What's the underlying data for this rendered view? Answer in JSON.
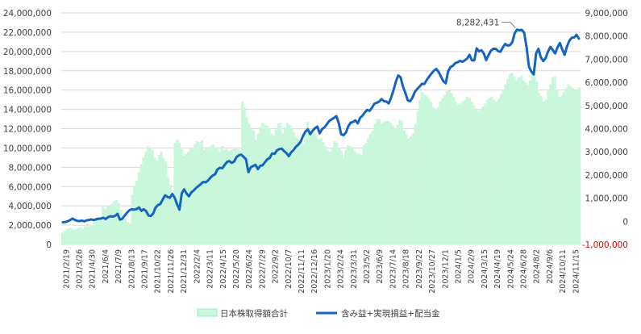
{
  "chart_data": {
    "type": "bar+line",
    "left_axis": {
      "min": 0,
      "max": 24000000,
      "ticks": [
        0,
        2000000,
        4000000,
        6000000,
        8000000,
        10000000,
        12000000,
        14000000,
        16000000,
        18000000,
        20000000,
        22000000,
        24000000
      ],
      "tick_labels": [
        "0",
        "2,000,000",
        "4,000,000",
        "6,000,000",
        "8,000,000",
        "10,000,000",
        "12,000,000",
        "14,000,000",
        "16,000,000",
        "18,000,000",
        "20,000,000",
        "22,000,000",
        "24,000,000"
      ]
    },
    "right_axis": {
      "min": -1000000,
      "max": 9000000,
      "ticks": [
        -1000000,
        0,
        1000000,
        2000000,
        3000000,
        4000000,
        5000000,
        6000000,
        7000000,
        8000000,
        9000000
      ],
      "tick_labels": [
        "-1,000,000",
        "0",
        "1,000,000",
        "2,000,000",
        "3,000,000",
        "4,000,000",
        "5,000,000",
        "6,000,000",
        "7,000,000",
        "8,000,000",
        "9,000,000"
      ],
      "negative_color": "#e00000"
    },
    "x_labels": [
      "2021/2/19",
      "2021/3/26",
      "2021/4/30",
      "2021/6/4",
      "2021/7/9",
      "2021/8/13",
      "2021/9/17",
      "2021/10/22",
      "2021/11/26",
      "2021/12/31",
      "2022/2/4",
      "2022/3/11",
      "2022/4/15",
      "2022/5/20",
      "2022/6/24",
      "2022/7/29",
      "2022/9/2",
      "2022/10/7",
      "2022/11/11",
      "2022/12/16",
      "2023/1/20",
      "2023/2/24",
      "2023/3/31",
      "2023/5/2",
      "2023/6/9",
      "2023/7/14",
      "2023/8/18",
      "2023/9/22",
      "2023/10/27",
      "2023/12/1",
      "2024/1/5",
      "2024/2/9",
      "2024/3/15",
      "2024/4/19",
      "2024/5/24",
      "2024/6/28",
      "2024/8/2",
      "2024/9/6",
      "2024/10/11",
      "2024/11/15"
    ],
    "series": [
      {
        "name": "日本株取得額合計",
        "type": "bar",
        "axis": "left",
        "color": "#c9f7dc",
        "values": [
          1200000,
          1400000,
          1600000,
          1700000,
          1700000,
          1500000,
          1600000,
          1700000,
          1800000,
          1600000,
          1900000,
          1900000,
          1900000,
          2000000,
          2300000,
          2500000,
          2700000,
          2800000,
          3900000,
          3700000,
          3900000,
          4000000,
          4200000,
          4500000,
          4600000,
          4300000,
          3600000,
          3000000,
          2700000,
          2300000,
          2200000,
          5200000,
          6000000,
          6600000,
          7500000,
          8300000,
          9000000,
          9600000,
          10200000,
          10000000,
          9800000,
          9000000,
          8700000,
          9300000,
          9600000,
          9000000,
          8600000,
          7000000,
          6200000,
          5000000,
          10500000,
          10900000,
          10500000,
          9900000,
          9200000,
          9400000,
          9600000,
          10000000,
          9900000,
          10400000,
          10700000,
          10600000,
          10800000,
          9800000,
          10100000,
          9900000,
          10200000,
          10400000,
          10000000,
          9900000,
          9600000,
          10200000,
          9800000,
          9900000,
          9700000,
          9800000,
          9900000,
          10100000,
          9900000,
          9700000,
          14800000,
          14200000,
          13200000,
          12500000,
          12000000,
          11800000,
          10800000,
          11500000,
          12200000,
          12600000,
          12400000,
          12300000,
          12000000,
          11500000,
          11300000,
          11900000,
          12500000,
          12600000,
          11500000,
          12100000,
          12600000,
          12400000,
          12000000,
          11600000,
          11200000,
          10800000,
          10600000,
          10500000,
          11800000,
          12700000,
          12000000,
          11700000,
          11500000,
          11300000,
          10900000,
          11000000,
          10600000,
          10200000,
          9700000,
          9600000,
          10000000,
          10700000,
          10500000,
          10000000,
          9700000,
          9000000,
          9800000,
          10300000,
          10200000,
          10000000,
          9700000,
          9500000,
          9400000,
          9300000,
          10300000,
          10500000,
          11000000,
          11500000,
          11800000,
          12500000,
          13000000,
          13000000,
          12500000,
          12700000,
          12800000,
          12800000,
          12600000,
          12300000,
          12000000,
          12400000,
          12900000,
          12800000,
          11800000,
          11400000,
          11000000,
          11200000,
          11500000,
          12500000,
          13800000,
          15000000,
          15800000,
          15500000,
          15400000,
          15100000,
          14800000,
          14200000,
          14000000,
          14200000,
          14800000,
          15200000,
          15500000,
          15900000,
          16000000,
          15700000,
          15300000,
          14800000,
          14500000,
          14500000,
          14800000,
          15000000,
          15300000,
          15200000,
          14800000,
          14400000,
          14100000,
          13900000,
          14000000,
          14300000,
          14600000,
          15000000,
          15200000,
          15300000,
          15000000,
          14800000,
          15100000,
          15600000,
          16000000,
          16600000,
          17200000,
          17700000,
          17800000,
          17400000,
          17000000,
          17300000,
          17500000,
          17000000,
          16800000,
          16500000,
          17000000,
          17800000,
          17600000,
          16900000,
          15700000,
          15400000,
          14800000,
          15000000,
          15900000,
          16600000,
          17300000,
          17400000,
          16000000,
          15300000,
          15400000,
          15800000,
          16200000,
          16600000,
          16400000,
          16200000,
          16000000,
          16100000,
          16300000
        ],
        "note_values_rendered_as_columns": true
      },
      {
        "name": "含み益+実現損益+配当金",
        "type": "line",
        "axis": "right",
        "color": "#1565c0",
        "values": [
          -40000,
          -30000,
          0,
          50000,
          120000,
          60000,
          20000,
          10000,
          30000,
          0,
          40000,
          60000,
          80000,
          50000,
          90000,
          110000,
          120000,
          150000,
          100000,
          180000,
          220000,
          200000,
          240000,
          320000,
          70000,
          110000,
          250000,
          380000,
          480000,
          520000,
          500000,
          530000,
          600000,
          450000,
          520000,
          440000,
          250000,
          230000,
          340000,
          600000,
          700000,
          750000,
          950000,
          1120000,
          1050000,
          1020000,
          1180000,
          1020000,
          740000,
          500000,
          1210000,
          1380000,
          1200000,
          1080000,
          1250000,
          1330000,
          1440000,
          1520000,
          1610000,
          1700000,
          1680000,
          1760000,
          1880000,
          1980000,
          2030000,
          2240000,
          2310000,
          2290000,
          2430000,
          2560000,
          2600000,
          2520000,
          2580000,
          2770000,
          2850000,
          2880000,
          2780000,
          2680000,
          2120000,
          2330000,
          2390000,
          2440000,
          2250000,
          2400000,
          2420000,
          2560000,
          2680000,
          2740000,
          2930000,
          2910000,
          3060000,
          3120000,
          3140000,
          3030000,
          2950000,
          2810000,
          2980000,
          3080000,
          3220000,
          3310000,
          3440000,
          3690000,
          3880000,
          3970000,
          3760000,
          3910000,
          4020000,
          4090000,
          3800000,
          3980000,
          4060000,
          4190000,
          4330000,
          4400000,
          4470000,
          4540000,
          4250000,
          3760000,
          3720000,
          3830000,
          4100000,
          4260000,
          4290000,
          4360000,
          4230000,
          4470000,
          4560000,
          4710000,
          4810000,
          4770000,
          4910000,
          5080000,
          5120000,
          5170000,
          5280000,
          5190000,
          5170000,
          5090000,
          5330000,
          5650000,
          6020000,
          6300000,
          6220000,
          5820000,
          5550000,
          5230000,
          5190000,
          5340000,
          5590000,
          5720000,
          5820000,
          5940000,
          5930000,
          6100000,
          6250000,
          6380000,
          6500000,
          6580000,
          6450000,
          6250000,
          6050000,
          5960000,
          6480000,
          6660000,
          6720000,
          6830000,
          6870000,
          6930000,
          6890000,
          6950000,
          7030000,
          7190000,
          6950000,
          6950000,
          7470000,
          7340000,
          7390000,
          7250000,
          6960000,
          7180000,
          7370000,
          7450000,
          7450000,
          7350000,
          7320000,
          7510000,
          7660000,
          7590000,
          7610000,
          7740000,
          8130000,
          8280000,
          8250000,
          8270000,
          8140000,
          7510000,
          6670000,
          6470000,
          6340000,
          7250000,
          7450000,
          7080000,
          6920000,
          7050000,
          7330000,
          7530000,
          7400000,
          7250000,
          7520000,
          7700000,
          7420000,
          7190000,
          7560000,
          7800000,
          7930000,
          7940000,
          8050000,
          7890000
        ],
        "data_label": {
          "text": "8,282,431",
          "value": 8282431
        }
      }
    ],
    "legend": {
      "placement": "bottom"
    },
    "gridlines": true
  }
}
